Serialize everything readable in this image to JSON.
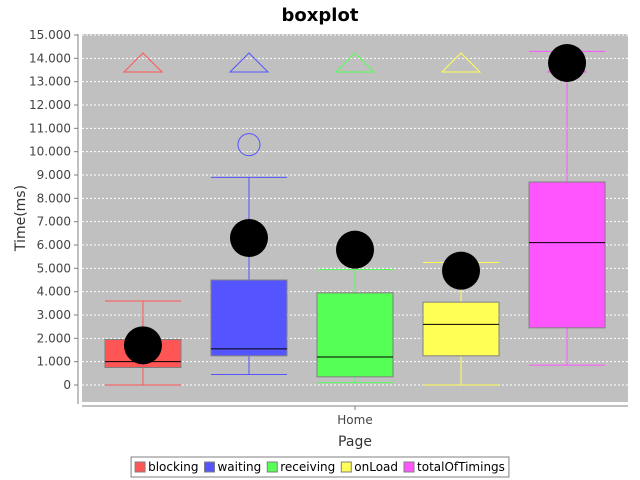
{
  "chart_data": {
    "type": "boxplot",
    "title": "boxplot",
    "xlabel": "Page",
    "ylabel": "Time(ms)",
    "ylim": [
      -800,
      15000
    ],
    "yticks": [
      0,
      1000,
      2000,
      3000,
      4000,
      5000,
      6000,
      7000,
      8000,
      9000,
      10000,
      11000,
      12000,
      13000,
      14000,
      15000
    ],
    "ytick_labels": [
      "0",
      "1.000",
      "2.000",
      "3.000",
      "4.000",
      "5.000",
      "6.000",
      "7.000",
      "8.000",
      "9.000",
      "10.000",
      "11.000",
      "12.000",
      "13.000",
      "14.000",
      "15.000"
    ],
    "categories": [
      "Home"
    ],
    "grid": "horizontal dashed",
    "legend_position": "bottom",
    "plot_background": "#c0c0c0",
    "series": [
      {
        "name": "blocking",
        "color": "#ff5555",
        "min": 0,
        "q1": 750,
        "median": 1000,
        "q3": 1950,
        "max": 3600,
        "mean": 1700,
        "outliers": [],
        "far_outlier_marker": true
      },
      {
        "name": "waiting",
        "color": "#5555ff",
        "min": 450,
        "q1": 1250,
        "median": 1550,
        "q3": 4500,
        "max": 8900,
        "mean": 6300,
        "outliers": [
          10300
        ],
        "far_outlier_marker": true
      },
      {
        "name": "receiving",
        "color": "#55ff55",
        "min": 100,
        "q1": 350,
        "median": 1200,
        "q3": 3950,
        "max": 4950,
        "mean": 5800,
        "outliers": [],
        "far_outlier_marker": true
      },
      {
        "name": "onLoad",
        "color": "#ffff55",
        "min": 0,
        "q1": 1250,
        "median": 2600,
        "q3": 3550,
        "max": 5250,
        "mean": 4900,
        "outliers": [],
        "far_outlier_marker": true
      },
      {
        "name": "totalOfTimings",
        "color": "#ff55ff",
        "min": 850,
        "q1": 2450,
        "median": 6100,
        "q3": 8700,
        "max": 14300,
        "mean": 13800,
        "outliers": [],
        "far_outlier_marker": true
      }
    ]
  }
}
